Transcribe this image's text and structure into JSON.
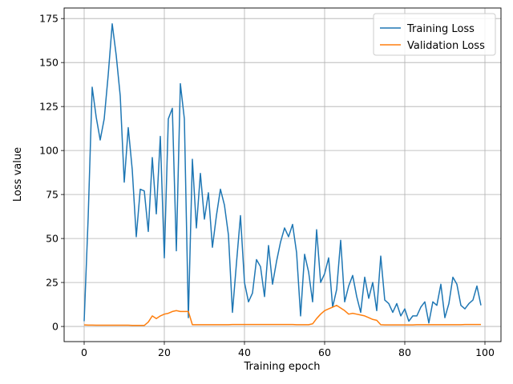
{
  "chart_data": {
    "type": "line",
    "title": "",
    "xlabel": "Training epoch",
    "ylabel": "Loss value",
    "xlim": [
      -5,
      104
    ],
    "ylim": [
      -8.6,
      181
    ],
    "xticks": [
      0,
      20,
      40,
      60,
      80,
      100
    ],
    "yticks": [
      0,
      25,
      50,
      75,
      100,
      125,
      150,
      175
    ],
    "grid": true,
    "legend_position": "top-right",
    "x": [
      0,
      1,
      2,
      3,
      4,
      5,
      6,
      7,
      8,
      9,
      10,
      11,
      12,
      13,
      14,
      15,
      16,
      17,
      18,
      19,
      20,
      21,
      22,
      23,
      24,
      25,
      26,
      27,
      28,
      29,
      30,
      31,
      32,
      33,
      34,
      35,
      36,
      37,
      38,
      39,
      40,
      41,
      42,
      43,
      44,
      45,
      46,
      47,
      48,
      49,
      50,
      51,
      52,
      53,
      54,
      55,
      56,
      57,
      58,
      59,
      60,
      61,
      62,
      63,
      64,
      65,
      66,
      67,
      68,
      69,
      70,
      71,
      72,
      73,
      74,
      75,
      76,
      77,
      78,
      79,
      80,
      81,
      82,
      83,
      84,
      85,
      86,
      87,
      88,
      89,
      90,
      91,
      92,
      93,
      94,
      95,
      96,
      97,
      98,
      99
    ],
    "series": [
      {
        "name": "Training Loss",
        "color": "#1f77b4",
        "values": [
          3,
          62,
          136,
          119,
          106,
          118,
          143,
          172,
          154,
          131,
          82,
          113,
          89,
          51,
          78,
          77,
          54,
          96,
          64,
          108,
          39,
          118,
          124,
          43,
          138,
          118,
          5,
          95,
          56,
          87,
          61,
          76,
          45,
          63,
          78,
          69,
          52,
          8,
          36,
          63,
          25,
          14,
          19,
          38,
          34,
          17,
          46,
          24,
          37,
          48,
          56,
          51,
          58,
          42,
          6,
          41,
          31,
          14,
          55,
          25,
          30,
          39,
          11,
          21,
          49,
          14,
          23,
          29,
          17,
          8,
          28,
          16,
          25,
          9,
          40,
          15,
          13,
          8,
          13,
          6,
          10,
          3,
          6,
          6,
          11,
          14,
          2,
          14,
          12,
          24,
          5,
          13,
          28,
          24,
          12,
          10,
          13,
          15,
          23,
          12
        ]
      },
      {
        "name": "Validation Loss",
        "color": "#ff7f0e",
        "values": [
          0.9,
          0.8,
          0.8,
          0.7,
          0.7,
          0.7,
          0.7,
          0.7,
          0.7,
          0.7,
          0.7,
          0.7,
          0.6,
          0.6,
          0.6,
          0.6,
          2.5,
          6.0,
          4.5,
          6.0,
          7.0,
          7.5,
          8.5,
          9.0,
          8.5,
          8.5,
          8.5,
          1.0,
          1.0,
          1.0,
          1.0,
          1.0,
          1.0,
          1.0,
          1.0,
          1.0,
          1.0,
          1.1,
          1.1,
          1.1,
          1.1,
          1.1,
          1.1,
          1.1,
          1.1,
          1.1,
          1.1,
          1.1,
          1.1,
          1.1,
          1.1,
          1.1,
          1.1,
          1.0,
          1.0,
          1.0,
          1.0,
          1.5,
          4.5,
          7.0,
          9.0,
          10.0,
          11.0,
          12.0,
          10.5,
          9.0,
          7.0,
          7.5,
          7.0,
          6.5,
          6.0,
          5.0,
          4.0,
          3.5,
          1.0,
          0.9,
          0.9,
          0.9,
          0.9,
          0.9,
          0.9,
          0.9,
          0.9,
          1.0,
          1.0,
          1.0,
          1.0,
          1.0,
          1.0,
          1.0,
          1.0,
          1.0,
          1.0,
          1.0,
          1.0,
          1.1,
          1.1,
          1.1,
          1.1,
          1.1
        ]
      }
    ]
  }
}
